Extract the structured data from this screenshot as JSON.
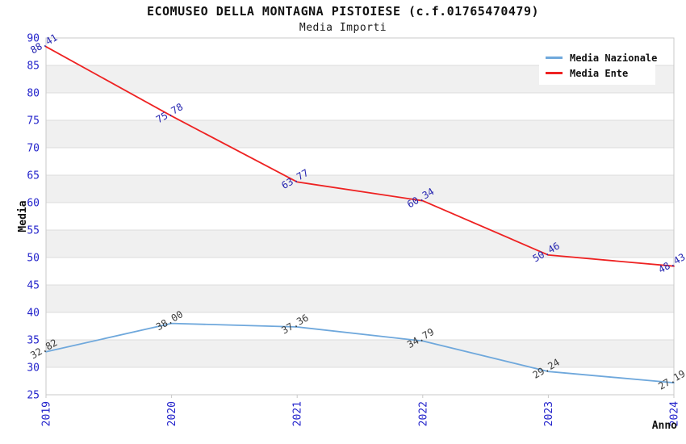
{
  "page": {
    "background_color": "#ffffff"
  },
  "chart_data": {
    "type": "line",
    "title": "ECOMUSEO DELLA MONTAGNA PISTOIESE (c.f.01765470479)",
    "subtitle": "Media Importi",
    "xlabel": "Anno",
    "ylabel": "Media",
    "categories": [
      "2019",
      "2020",
      "2021",
      "2022",
      "2023",
      "2024"
    ],
    "series": [
      {
        "name": "Media Nazionale",
        "line_color": "#6fa8dc",
        "label_color": "#3a3a3a",
        "values": [
          32.82,
          38.0,
          37.36,
          34.79,
          29.24,
          27.19
        ]
      },
      {
        "name": "Media Ente",
        "line_color": "#ee2222",
        "label_color": "#2525b0",
        "values": [
          88.41,
          75.78,
          63.77,
          60.34,
          50.46,
          48.43
        ]
      }
    ],
    "ylim": [
      25,
      90
    ],
    "ytick_step": 5,
    "grid": "horizontal-bands",
    "band_color": "#f0f0f0",
    "gridline_color": "#dcdcdc",
    "axis_border_color": "#c9c9c9",
    "tick_label_color": "#2323cb",
    "legend_position": "top-right",
    "value_label_decimals": 2
  }
}
